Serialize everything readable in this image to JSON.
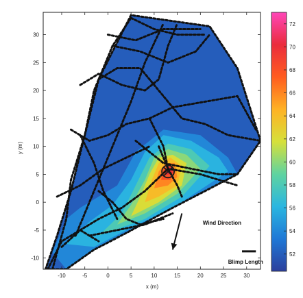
{
  "chart_data": {
    "type": "heatmap",
    "title": "",
    "xlabel": "x (m)",
    "ylabel": "y (m)",
    "xlim": [
      -14,
      33
    ],
    "ylim": [
      -12,
      34
    ],
    "x_ticks": [
      -10,
      -5,
      0,
      5,
      10,
      15,
      20,
      25,
      30
    ],
    "y_ticks": [
      -10,
      -5,
      0,
      5,
      10,
      15,
      20,
      25,
      30
    ],
    "colorbar": {
      "min": 50.5,
      "max": 73,
      "ticks": [
        52,
        54,
        56,
        58,
        60,
        62,
        64,
        66,
        68,
        70,
        72
      ],
      "colormap": [
        "#2c3f9c",
        "#1f78d6",
        "#2ab6e0",
        "#5fd3a0",
        "#d6e03a",
        "#ffb224",
        "#ff5c1f",
        "#ea2c3c",
        "#ff46b8"
      ]
    },
    "domain_outline": [
      [
        -13.5,
        -12
      ],
      [
        -11,
        -6
      ],
      [
        -8,
        2
      ],
      [
        -5,
        12
      ],
      [
        -2,
        22
      ],
      [
        1,
        27
      ],
      [
        5,
        33.5
      ],
      [
        22,
        31.5
      ],
      [
        28,
        24
      ],
      [
        33,
        11
      ],
      [
        28,
        5
      ],
      [
        14,
        -1
      ],
      [
        4,
        -5.5
      ],
      [
        -3,
        -8.5
      ],
      [
        -9,
        -12
      ]
    ],
    "hotspot": {
      "x": 13,
      "y": 5.5,
      "peak_value": 70
    },
    "field_levels": [
      {
        "value": 52,
        "polygon": [
          [
            -13.5,
            -12
          ],
          [
            -11,
            -6
          ],
          [
            -8,
            2
          ],
          [
            -5,
            12
          ],
          [
            -2,
            22
          ],
          [
            1,
            27
          ],
          [
            5,
            33.5
          ],
          [
            22,
            31.5
          ],
          [
            28,
            24
          ],
          [
            33,
            11
          ],
          [
            28,
            5
          ],
          [
            14,
            -1
          ],
          [
            4,
            -5.5
          ],
          [
            -3,
            -8.5
          ],
          [
            -9,
            -12
          ]
        ]
      },
      {
        "value": 54,
        "polygon": [
          [
            -12,
            -9
          ],
          [
            -9,
            -3
          ],
          [
            -6,
            -1
          ],
          [
            -2,
            1
          ],
          [
            2,
            3
          ],
          [
            6,
            9
          ],
          [
            12,
            13
          ],
          [
            20,
            12
          ],
          [
            26,
            8
          ],
          [
            28,
            5
          ],
          [
            14,
            -1
          ],
          [
            4,
            -5.5
          ],
          [
            -3,
            -8.5
          ],
          [
            -9,
            -12
          ]
        ]
      },
      {
        "value": 56,
        "polygon": [
          [
            -9,
            -7.5
          ],
          [
            -4,
            -3.5
          ],
          [
            1,
            -0.5
          ],
          [
            5,
            4
          ],
          [
            8,
            9
          ],
          [
            12,
            12
          ],
          [
            18,
            11
          ],
          [
            24,
            8
          ],
          [
            26,
            5.5
          ],
          [
            15,
            -0.5
          ],
          [
            4,
            -5
          ],
          [
            -3,
            -8
          ]
        ]
      },
      {
        "value": 58,
        "polygon": [
          [
            -2,
            -6
          ],
          [
            3,
            -2
          ],
          [
            6,
            3
          ],
          [
            9,
            8
          ],
          [
            13,
            10.5
          ],
          [
            18,
            9.5
          ],
          [
            22,
            6.5
          ],
          [
            16,
            1
          ],
          [
            8,
            -3
          ]
        ]
      },
      {
        "value": 60,
        "polygon": [
          [
            2,
            -4
          ],
          [
            5,
            -0.5
          ],
          [
            8,
            4
          ],
          [
            10,
            8
          ],
          [
            13,
            9.5
          ],
          [
            17,
            8.5
          ],
          [
            20,
            6
          ],
          [
            15,
            1.5
          ],
          [
            8,
            -2
          ]
        ]
      },
      {
        "value": 62,
        "polygon": [
          [
            5,
            -2.5
          ],
          [
            7,
            1
          ],
          [
            9,
            5
          ],
          [
            11,
            8
          ],
          [
            14,
            8.5
          ],
          [
            17,
            7
          ],
          [
            16,
            3
          ],
          [
            11,
            0
          ]
        ]
      },
      {
        "value": 64,
        "polygon": [
          [
            8,
            0
          ],
          [
            9.5,
            4
          ],
          [
            11,
            7
          ],
          [
            13.5,
            8
          ],
          [
            16,
            6.5
          ],
          [
            15,
            3
          ],
          [
            11,
            1
          ]
        ]
      },
      {
        "value": 66,
        "polygon": [
          [
            10,
            2.5
          ],
          [
            11,
            5.5
          ],
          [
            12.5,
            7
          ],
          [
            14.5,
            7
          ],
          [
            15,
            4.5
          ],
          [
            13,
            3
          ]
        ]
      },
      {
        "value": 68,
        "polygon": [
          [
            11.5,
            4
          ],
          [
            12,
            6
          ],
          [
            13.5,
            6.8
          ],
          [
            14.5,
            5.5
          ],
          [
            13.5,
            4
          ]
        ]
      },
      {
        "value": 70,
        "polygon": [
          [
            12.5,
            4.8
          ],
          [
            12.7,
            6.2
          ],
          [
            13.8,
            6.4
          ],
          [
            14,
            5.2
          ]
        ]
      }
    ],
    "annotations": [
      {
        "text": "Wind Direction",
        "x": 20.5,
        "y": -4
      },
      {
        "text": "Blimp Length",
        "x": 26,
        "y": -11
      }
    ],
    "wind_arrow": {
      "from": [
        16,
        -2
      ],
      "to": [
        14,
        -8.5
      ]
    },
    "scale_bar": {
      "x1": 29,
      "x2": 32,
      "y": -8.8
    },
    "flight_path": [
      [
        [
          -12,
          -12
        ],
        [
          -9,
          -3
        ],
        [
          -8,
          4
        ],
        [
          -5,
          12
        ],
        [
          -3,
          20
        ],
        [
          1,
          28
        ],
        [
          5,
          33
        ]
      ],
      [
        [
          -10,
          -8
        ],
        [
          -6,
          -5
        ],
        [
          -2,
          -3
        ],
        [
          3,
          -1
        ],
        [
          8,
          2
        ],
        [
          13,
          6
        ],
        [
          20,
          5
        ],
        [
          28,
          3
        ]
      ],
      [
        [
          -7,
          -6
        ],
        [
          -4,
          0
        ],
        [
          -1,
          6
        ],
        [
          2,
          12
        ],
        [
          5,
          18
        ],
        [
          8,
          25
        ],
        [
          12,
          32
        ]
      ],
      [
        [
          -4,
          -6
        ],
        [
          2,
          -5
        ],
        [
          8,
          -4
        ],
        [
          14,
          -2
        ]
      ],
      [
        [
          -11,
          1
        ],
        [
          -6,
          3
        ],
        [
          -1,
          6
        ],
        [
          4,
          8
        ],
        [
          9,
          10
        ]
      ],
      [
        [
          -8,
          13
        ],
        [
          -4,
          11
        ],
        [
          0,
          12
        ],
        [
          4,
          14
        ],
        [
          9,
          15
        ],
        [
          14,
          17
        ],
        [
          21,
          18
        ],
        [
          28,
          19
        ],
        [
          32,
          13
        ]
      ],
      [
        [
          -6,
          21
        ],
        [
          -2,
          23
        ],
        [
          3,
          21
        ],
        [
          8,
          20
        ],
        [
          11,
          22
        ],
        [
          13,
          28
        ],
        [
          15,
          32
        ]
      ],
      [
        [
          5,
          33
        ],
        [
          10,
          31
        ],
        [
          15,
          30
        ],
        [
          21,
          30
        ]
      ],
      [
        [
          1,
          28
        ],
        [
          7,
          27
        ],
        [
          13,
          25
        ],
        [
          19,
          27
        ],
        [
          22,
          30
        ]
      ],
      [
        [
          -2,
          22
        ],
        [
          2,
          24
        ],
        [
          7,
          24
        ],
        [
          12,
          19
        ],
        [
          16,
          15
        ],
        [
          21,
          14
        ],
        [
          26,
          12
        ],
        [
          33,
          11
        ]
      ],
      [
        [
          11,
          10
        ],
        [
          13,
          6
        ],
        [
          15,
          3
        ],
        [
          16,
          1
        ]
      ],
      [
        [
          6,
          11
        ],
        [
          9,
          9
        ],
        [
          12,
          7
        ],
        [
          18,
          6
        ],
        [
          24,
          5
        ],
        [
          28,
          5
        ]
      ],
      [
        [
          -2,
          2
        ],
        [
          1,
          0
        ],
        [
          4,
          -3
        ],
        [
          7,
          -4
        ],
        [
          12,
          -3
        ]
      ],
      [
        [
          -6,
          12
        ],
        [
          -3,
          7
        ],
        [
          -1,
          2
        ],
        [
          2,
          -3
        ]
      ],
      [
        [
          -13,
          -12
        ],
        [
          -10,
          -7
        ],
        [
          -6,
          -5
        ],
        [
          -2,
          -7
        ]
      ],
      [
        [
          0,
          30
        ],
        [
          6,
          29
        ],
        [
          12,
          31
        ],
        [
          20,
          31
        ]
      ],
      [
        [
          9,
          15
        ],
        [
          12,
          10
        ],
        [
          13,
          6
        ]
      ]
    ]
  }
}
